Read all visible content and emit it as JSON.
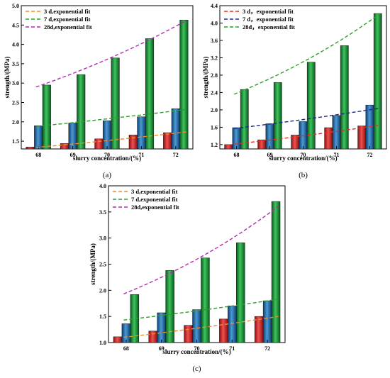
{
  "colors": {
    "bar_3d": "#d42a2a",
    "bar_7d": "#2a6fa8",
    "bar_28d": "#1f9a3c",
    "fit_orange": "#f08c2a",
    "fit_green": "#2aa02a",
    "fit_purple": "#b02cb0",
    "fit_red": "#e03020",
    "fit_navy": "#1a2a8a"
  },
  "chart_data": [
    {
      "type": "bar",
      "panel_label": "(a)",
      "xlabel": "slurry concentration/(%)",
      "ylabel": "strength/(MPa)",
      "categories": [
        "68",
        "69",
        "70",
        "71",
        "72"
      ],
      "ylim": [
        1.3,
        5.0
      ],
      "yticks": [
        "1.5",
        "2.0",
        "2.5",
        "3.0",
        "3.5",
        "4.0",
        "4.5",
        "5.0"
      ],
      "legend_position": "top-left",
      "series": [
        {
          "values": [
            1.35,
            1.44,
            1.56,
            1.66,
            1.72
          ]
        },
        {
          "values": [
            1.9,
            1.97,
            2.03,
            2.13,
            2.34
          ]
        },
        {
          "values": [
            2.95,
            3.22,
            3.65,
            4.15,
            4.63
          ]
        }
      ],
      "fits": [
        {
          "name": "3 d,exponential fit",
          "color_key": "fit_orange",
          "values": [
            1.34,
            1.43,
            1.53,
            1.63,
            1.74
          ]
        },
        {
          "name": "7 d,exponential fit",
          "color_key": "fit_green",
          "values": [
            1.88,
            1.98,
            2.09,
            2.2,
            2.32
          ]
        },
        {
          "name": "28d,exponential fit",
          "color_key": "fit_purple",
          "values": [
            2.9,
            3.25,
            3.63,
            4.07,
            4.62
          ]
        }
      ]
    },
    {
      "type": "bar",
      "panel_label": "(b)",
      "xlabel": "slurry concentration/(%)",
      "ylabel": "strength/(MPa)",
      "categories": [
        "68",
        "69",
        "70",
        "71",
        "72"
      ],
      "ylim": [
        1.1,
        4.4
      ],
      "yticks": [
        "1.2",
        "1.6",
        "2.0",
        "2.4",
        "2.8",
        "3.2",
        "3.6",
        "4.0",
        "4.4"
      ],
      "legend_position": "top-left",
      "series": [
        {
          "values": [
            1.2,
            1.31,
            1.42,
            1.59,
            1.63
          ]
        },
        {
          "values": [
            1.59,
            1.68,
            1.73,
            1.87,
            2.11
          ]
        },
        {
          "values": [
            2.47,
            2.63,
            3.1,
            3.48,
            4.22
          ]
        }
      ],
      "fits": [
        {
          "name": "3 d，exponential fit",
          "color_key": "fit_red",
          "values": [
            1.21,
            1.31,
            1.42,
            1.53,
            1.65
          ]
        },
        {
          "name": "7 d，exponential fit",
          "color_key": "fit_navy",
          "values": [
            1.57,
            1.67,
            1.79,
            1.91,
            2.04
          ]
        },
        {
          "name": "28d，exponential fit",
          "color_key": "fit_green",
          "values": [
            2.36,
            2.72,
            3.13,
            3.62,
            4.22
          ]
        }
      ]
    },
    {
      "type": "bar",
      "panel_label": "(c)",
      "xlabel": "slurry concentration/(%)",
      "ylabel": "strength/(MPa)",
      "categories": [
        "68",
        "69",
        "70",
        "71",
        "72"
      ],
      "ylim": [
        1.0,
        4.0
      ],
      "yticks": [
        "1.0",
        "1.5",
        "2.0",
        "2.5",
        "3.0",
        "3.5",
        "4.0"
      ],
      "legend_position": "top-left",
      "series": [
        {
          "values": [
            1.11,
            1.22,
            1.33,
            1.45,
            1.5
          ]
        },
        {
          "values": [
            1.36,
            1.57,
            1.63,
            1.7,
            1.8
          ]
        },
        {
          "values": [
            1.92,
            2.38,
            2.62,
            2.91,
            3.7
          ]
        }
      ],
      "fits": [
        {
          "name": "3 d,exponential fit",
          "color_key": "fit_orange",
          "values": [
            1.1,
            1.19,
            1.29,
            1.39,
            1.5
          ]
        },
        {
          "name": "7 d,exponential fit",
          "color_key": "fit_green",
          "values": [
            1.43,
            1.52,
            1.62,
            1.72,
            1.83
          ]
        },
        {
          "name": "28d,exponential fit",
          "color_key": "fit_purple",
          "values": [
            1.93,
            2.24,
            2.58,
            3.04,
            3.61
          ]
        }
      ]
    }
  ]
}
